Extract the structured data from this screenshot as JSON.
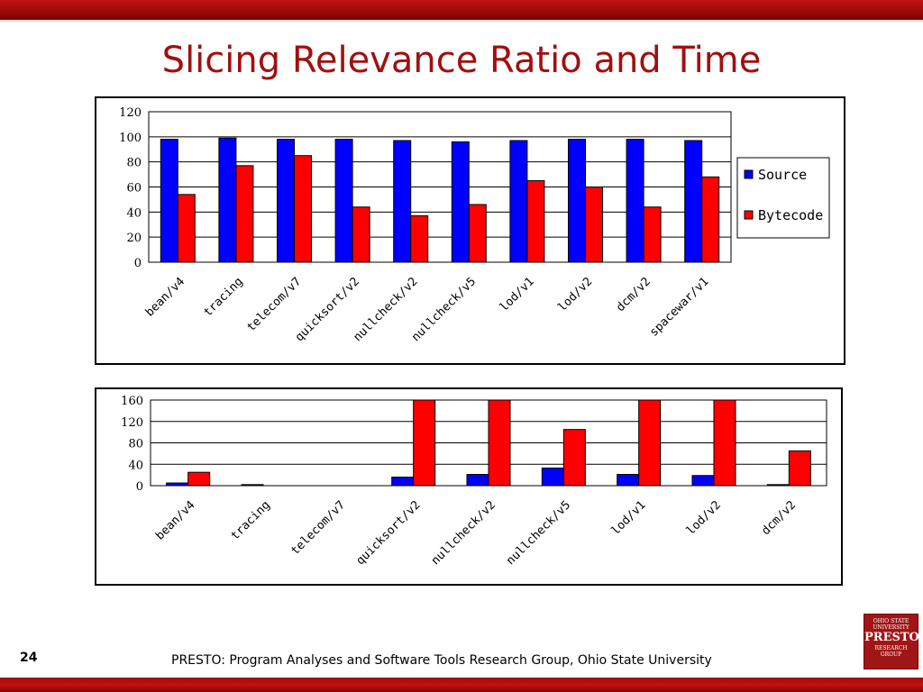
{
  "slide": {
    "title": "Slicing Relevance Ratio and Time",
    "page_number": "24",
    "footer": "PRESTO: Program Analyses and Software Tools Research Group, Ohio State University",
    "logo": {
      "line1": "OHIO STATE",
      "line2": "UNIVERSITY",
      "name": "PRESTO",
      "line3": "RESEARCH",
      "line4": "GROUP"
    }
  },
  "colors": {
    "source": "#0000ff",
    "bytecode": "#ff0000",
    "title": "#a01010",
    "bar_accent": "#b01010"
  },
  "chart_data": [
    {
      "type": "bar",
      "categories": [
        "bean/v4",
        "tracing",
        "telecom/v7",
        "quicksort/v2",
        "nullcheck/v2",
        "nullcheck/v5",
        "lod/v1",
        "lod/v2",
        "dcm/v2",
        "spacewar/v1"
      ],
      "series": [
        {
          "name": "Source",
          "values": [
            98,
            99,
            98,
            98,
            97,
            96,
            97,
            98,
            98,
            97
          ]
        },
        {
          "name": "Bytecode",
          "values": [
            54,
            77,
            85,
            44,
            37,
            46,
            65,
            60,
            44,
            68
          ]
        }
      ],
      "yticks": [
        0,
        20,
        40,
        60,
        80,
        100,
        120
      ],
      "ylim": [
        0,
        120
      ],
      "grid": true,
      "legend": "right",
      "title": "",
      "xlabel": "",
      "ylabel": ""
    },
    {
      "type": "bar",
      "categories": [
        "bean/v4",
        "tracing",
        "telecom/v7",
        "quicksort/v2",
        "nullcheck/v2",
        "nullcheck/v5",
        "lod/v1",
        "lod/v2",
        "dcm/v2"
      ],
      "series": [
        {
          "name": "Source",
          "values": [
            5,
            2,
            0,
            16,
            21,
            33,
            21,
            19,
            2
          ]
        },
        {
          "name": "Bytecode",
          "values": [
            25,
            0,
            0,
            160,
            160,
            105,
            160,
            160,
            65
          ]
        }
      ],
      "yticks": [
        0,
        40,
        80,
        120,
        160
      ],
      "ylim": [
        0,
        160
      ],
      "grid": true,
      "legend": "none",
      "title": "",
      "xlabel": "",
      "ylabel": ""
    }
  ]
}
